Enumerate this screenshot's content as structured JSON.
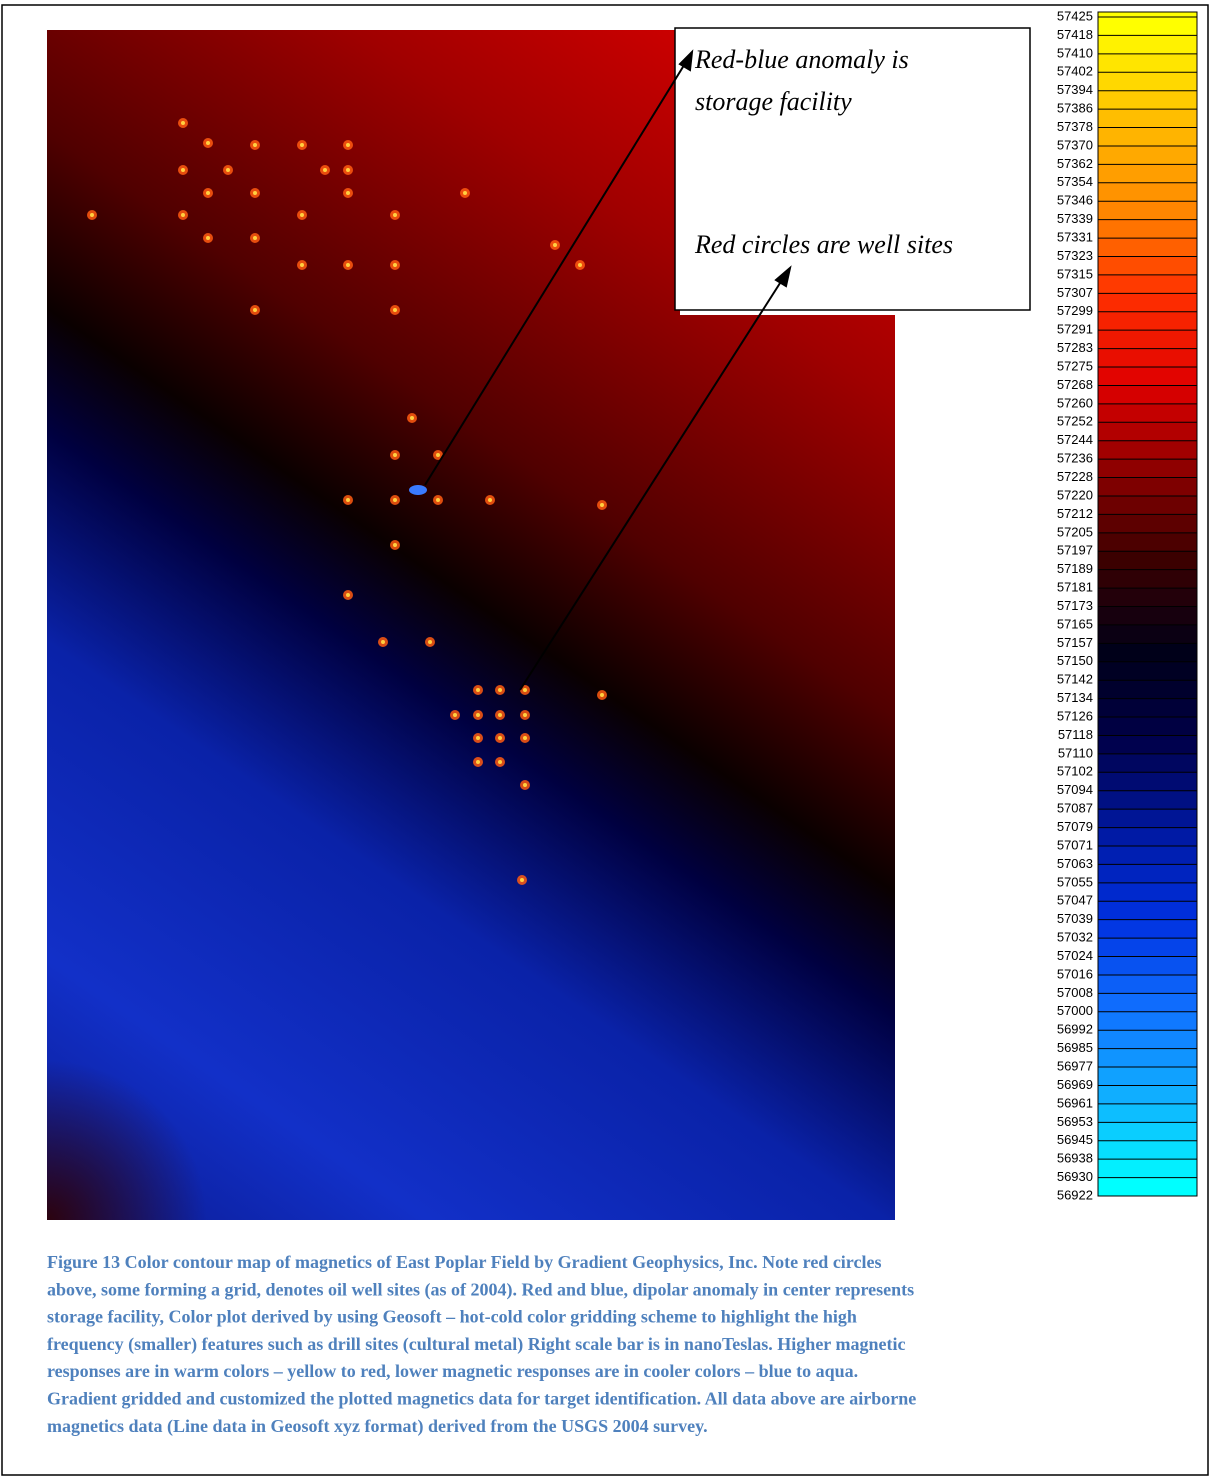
{
  "annotations": [
    "Red-blue anomaly is",
    "storage facility",
    "Red circles are well sites"
  ],
  "colorbar": {
    "labels": [
      57425,
      57418,
      57410,
      57402,
      57394,
      57386,
      57378,
      57370,
      57362,
      57354,
      57346,
      57339,
      57331,
      57323,
      57315,
      57307,
      57299,
      57291,
      57283,
      57275,
      57268,
      57260,
      57252,
      57244,
      57236,
      57228,
      57220,
      57212,
      57205,
      57197,
      57189,
      57181,
      57173,
      57165,
      57157,
      57150,
      57142,
      57134,
      57126,
      57118,
      57110,
      57102,
      57094,
      57087,
      57079,
      57071,
      57063,
      57055,
      57047,
      57039,
      57032,
      57024,
      57016,
      57008,
      57000,
      56992,
      56985,
      56977,
      56969,
      56961,
      56953,
      56945,
      56938,
      56930,
      56922
    ],
    "palette": [
      "#ffff00",
      "#ffc000",
      "#ff8c00",
      "#ff3000",
      "#e00000",
      "#8b0000",
      "#3a0000",
      "#000018",
      "#00004a",
      "#0018a0",
      "#0030e0",
      "#1070ff",
      "#10b0ff",
      "#00ffff"
    ]
  },
  "caption": [
    "Figure 13 Color contour map of magnetics of East Poplar Field by Gradient Geophysics, Inc.  Note red circles",
    "above, some forming a grid, denotes oil well sites (as of 2004).  Red and blue, dipolar anomaly in center represents",
    "storage facility,  Color plot derived by using Geosoft – hot-cold color gridding scheme to highlight the high",
    "frequency (smaller) features such as drill sites (cultural metal) Right scale bar is in nanoTeslas.  Higher magnetic",
    "responses are in warm colors – yellow to red, lower magnetic responses are in cooler colors – blue to aqua.",
    "Gradient gridded and customized the plotted magnetics data for target identification.  All data above are airborne",
    "magnetics data (Line data in Geosoft xyz format) derived from the USGS 2004 survey."
  ]
}
